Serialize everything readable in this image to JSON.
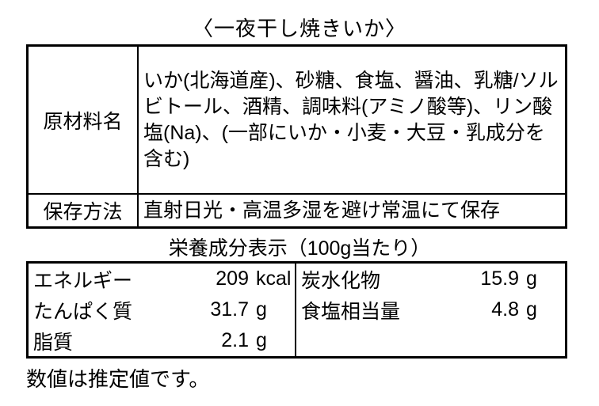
{
  "title": "〈一夜干し焼きいか〉",
  "info_table": {
    "rows": [
      {
        "label": "原材料名",
        "value": "いか(北海道産)、砂糖、食塩、醤油、乳糖/ソルビトール、酒精、調味料(アミノ酸等)、リン酸塩(Na)、(一部にいか・小麦・大豆・乳成分を含む)"
      },
      {
        "label": "保存方法",
        "value": "直射日光・高温多湿を避け常温にて保存"
      }
    ]
  },
  "nutrition": {
    "header": "栄養成分表示（100g当たり）",
    "left_column": [
      {
        "name": "エネルギー",
        "value": "209",
        "unit": "kcal"
      },
      {
        "name": "たんぱく質",
        "value": "31.7",
        "unit": "g"
      },
      {
        "name": "脂質",
        "value": "2.1",
        "unit": "g"
      }
    ],
    "right_column": [
      {
        "name": "炭水化物",
        "value": "15.9",
        "unit": "g"
      },
      {
        "name": "食塩相当量",
        "value": "4.8",
        "unit": "g"
      }
    ]
  },
  "note": "数値は推定値です。",
  "colors": {
    "text": "#000000",
    "background": "#ffffff",
    "border": "#000000"
  }
}
